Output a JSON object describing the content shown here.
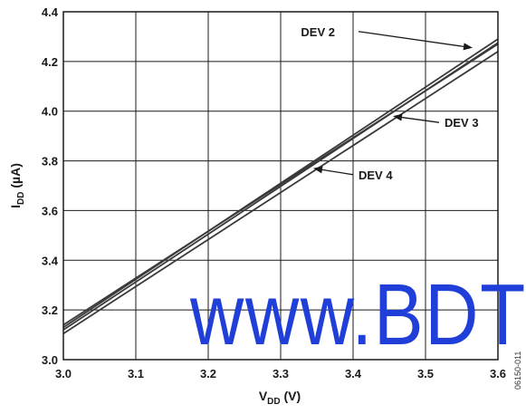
{
  "chart_data": {
    "type": "line",
    "xlim": [
      3.0,
      3.6
    ],
    "ylim": [
      3.0,
      4.4
    ],
    "x_ticks": [
      "3.0",
      "3.1",
      "3.2",
      "3.3",
      "3.4",
      "3.5",
      "3.6"
    ],
    "y_ticks": [
      "3.0",
      "3.2",
      "3.4",
      "3.6",
      "3.8",
      "4.0",
      "4.2",
      "4.4"
    ],
    "xlabel_main": "V",
    "xlabel_sub": "DD",
    "xlabel_unit": " (V)",
    "ylabel_main": "I",
    "ylabel_sub": "DD",
    "ylabel_unit": " (µA)",
    "grid": true,
    "series": [
      {
        "name": "DEV 2",
        "x": [
          3.0,
          3.6
        ],
        "y": [
          3.13,
          4.29
        ]
      },
      {
        "name": "",
        "x": [
          3.0,
          3.6
        ],
        "y": [
          3.12,
          4.275
        ]
      },
      {
        "name": "DEV 3",
        "x": [
          3.0,
          3.6
        ],
        "y": [
          3.105,
          4.24
        ]
      },
      {
        "name": "DEV 4",
        "x": [
          3.0,
          3.6
        ],
        "y": [
          3.14,
          4.27
        ]
      }
    ],
    "annotations": [
      {
        "text": "DEV 2",
        "x": 3.565,
        "y": 4.255
      },
      {
        "text": "DEV 3",
        "x": 3.455,
        "y": 3.98
      },
      {
        "text": "DEV 4",
        "x": 3.345,
        "y": 3.77
      }
    ]
  },
  "figure_id": "06150-011",
  "watermark": "www.BDT"
}
